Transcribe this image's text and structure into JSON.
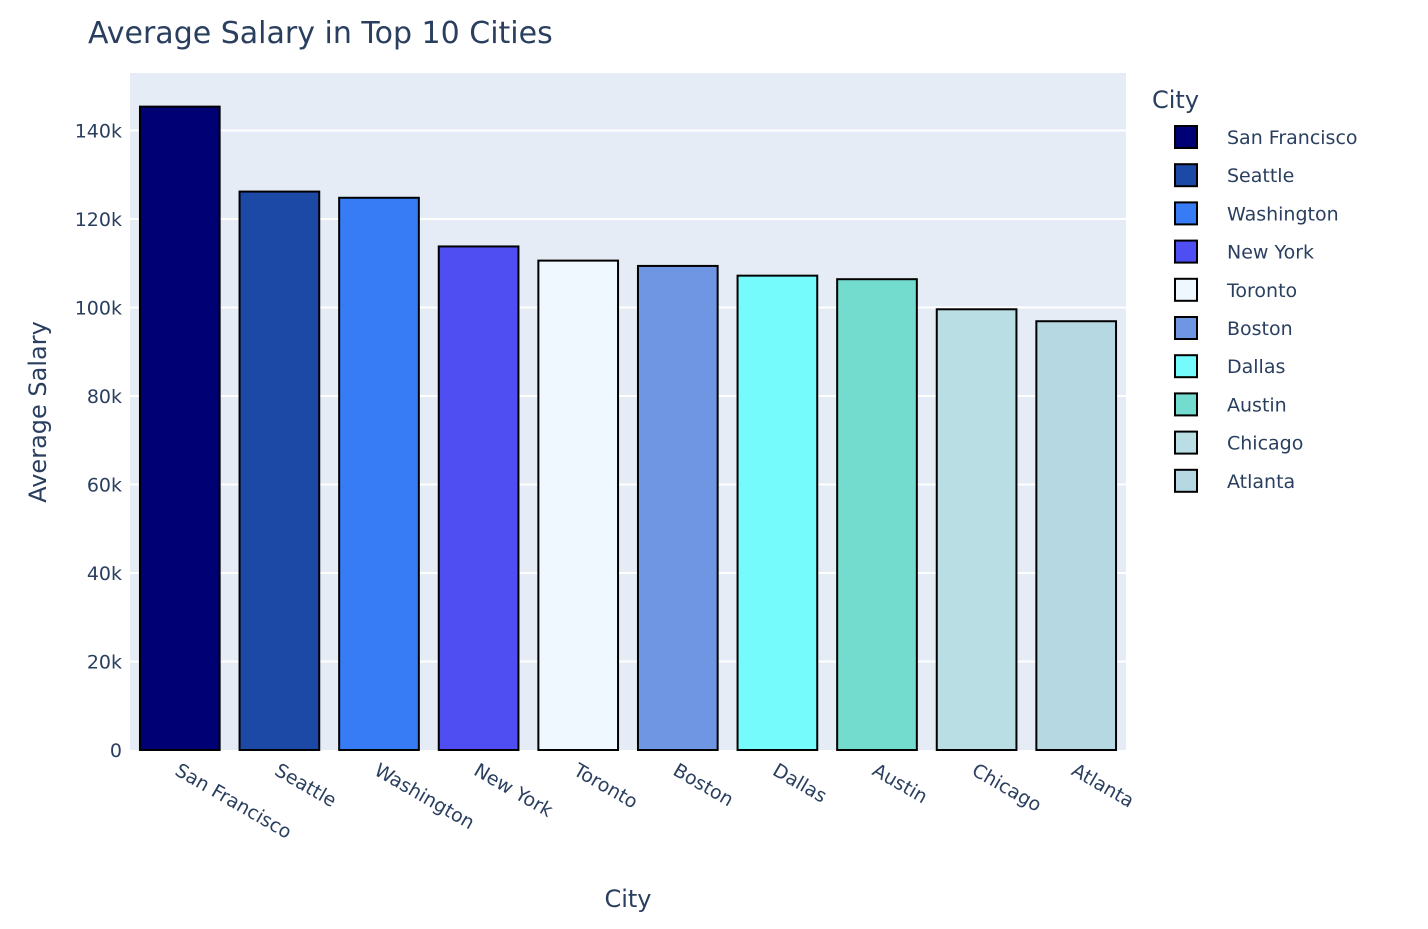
{
  "chart_data": {
    "type": "bar",
    "title": "Average Salary in Top 10 Cities",
    "xlabel": "City",
    "ylabel": "Average Salary",
    "categories": [
      "San Francisco",
      "Seattle",
      "Washington",
      "New York",
      "Toronto",
      "Boston",
      "Dallas",
      "Austin",
      "Chicago",
      "Atlanta"
    ],
    "values": [
      145400,
      126200,
      124800,
      113800,
      110600,
      109400,
      107200,
      106400,
      99600,
      96900
    ],
    "colors": [
      "#000075",
      "#1c48a6",
      "#387cf5",
      "#4e4ef3",
      "#f0f8ff",
      "#6f96e2",
      "#76fbfd",
      "#74dbcf",
      "#b9dfe5",
      "#b6d8e3"
    ],
    "ylim": [
      0,
      153000
    ],
    "yticks": [
      0,
      20000,
      40000,
      60000,
      80000,
      100000,
      120000,
      140000
    ],
    "ytick_labels": [
      "0",
      "20k",
      "40k",
      "60k",
      "80k",
      "100k",
      "120k",
      "140k"
    ],
    "legend_title": "City",
    "legend_position": "right",
    "grid": true,
    "plot_bg": "#e5ecf6"
  }
}
